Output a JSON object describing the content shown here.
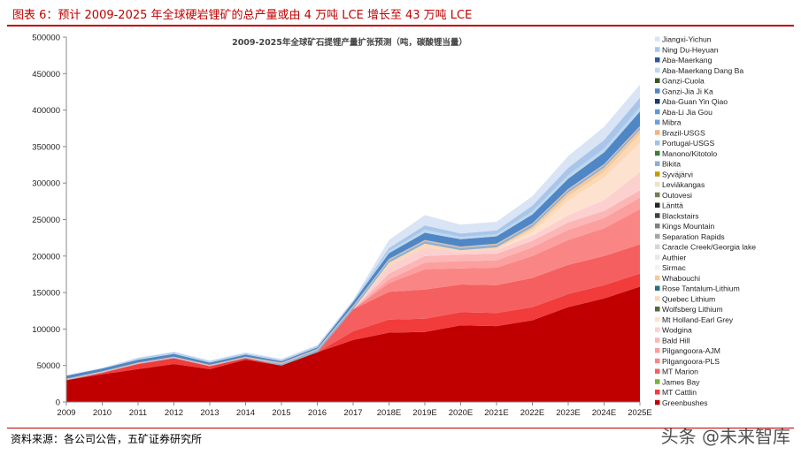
{
  "figure_title": "图表 6：预计 2009-2025 年全球硬岩锂矿的总产量或由 4 万吨 LCE 增长至 43 万吨 LCE",
  "source": "资料来源：各公司公告，五矿证券研究所",
  "watermark": "头条 @未来智库",
  "chart_data": {
    "type": "area",
    "stacked": true,
    "title": "2009-2025年全球矿石提锂产量扩张预测（吨，碳酸锂当量）",
    "xlabel": "",
    "ylabel": "",
    "ylim": [
      0,
      500000
    ],
    "yticks": [
      0,
      50000,
      100000,
      150000,
      200000,
      250000,
      300000,
      350000,
      400000,
      450000,
      500000
    ],
    "x": [
      "2009",
      "2010",
      "2011",
      "2012",
      "2013",
      "2014",
      "2015",
      "2016",
      "2017",
      "2018E",
      "2019E",
      "2020E",
      "2021E",
      "2022E",
      "2023E",
      "2024E",
      "2025E"
    ],
    "grid": false,
    "legend_position": "right",
    "series": [
      {
        "name": "Greenbushes",
        "color": "#c00000",
        "values": [
          30000,
          38000,
          45000,
          52000,
          45000,
          58000,
          50000,
          68000,
          85000,
          95000,
          96000,
          105000,
          104000,
          112000,
          130000,
          142000,
          158000
        ]
      },
      {
        "name": "MT Cattlin",
        "color": "#f23b3b",
        "values": [
          0,
          2000,
          7000,
          8000,
          4000,
          2000,
          0,
          0,
          12000,
          18000,
          18000,
          18000,
          18000,
          18000,
          18000,
          18000,
          18000
        ]
      },
      {
        "name": "James Bay",
        "color": "#77b13a",
        "values": [
          0,
          0,
          0,
          0,
          0,
          0,
          0,
          0,
          0,
          0,
          0,
          0,
          0,
          0,
          0,
          0,
          0
        ]
      },
      {
        "name": "MT Marion",
        "color": "#f55f5f",
        "values": [
          0,
          0,
          0,
          0,
          0,
          0,
          0,
          0,
          30000,
          38000,
          40000,
          38000,
          38000,
          40000,
          40000,
          40000,
          40000
        ]
      },
      {
        "name": "Pilgangoora-PLS",
        "color": "#fa8585",
        "values": [
          0,
          0,
          0,
          0,
          0,
          0,
          0,
          0,
          0,
          12000,
          28000,
          22000,
          24000,
          30000,
          34000,
          38000,
          48000
        ]
      },
      {
        "name": "Pilgangoora-AJM",
        "color": "#fb9f9f",
        "values": [
          0,
          0,
          0,
          0,
          0,
          0,
          0,
          0,
          0,
          5000,
          9000,
          10000,
          10000,
          12000,
          14000,
          14000,
          16000
        ]
      },
      {
        "name": "Bald Hill",
        "color": "#fcb6b6",
        "values": [
          0,
          0,
          0,
          0,
          0,
          0,
          0,
          0,
          0,
          8000,
          9000,
          9000,
          9000,
          9000,
          10000,
          10000,
          10000
        ]
      },
      {
        "name": "Wodgina",
        "color": "#fdd0d0",
        "values": [
          0,
          0,
          0,
          0,
          0,
          0,
          0,
          0,
          0,
          10000,
          12000,
          4000,
          6000,
          7000,
          10000,
          15000,
          25000
        ]
      },
      {
        "name": "Mt Holland-Earl Grey",
        "color": "#fde3cf",
        "values": [
          0,
          0,
          0,
          0,
          0,
          0,
          0,
          0,
          0,
          0,
          0,
          0,
          0,
          5000,
          20000,
          30000,
          40000
        ]
      },
      {
        "name": "Wolfsberg Lithium",
        "color": "#4e6b3e",
        "values": [
          0,
          0,
          0,
          0,
          0,
          0,
          0,
          0,
          0,
          0,
          0,
          0,
          0,
          0,
          0,
          0,
          0
        ]
      },
      {
        "name": "Quebec Lithium",
        "color": "#fbd9b8",
        "values": [
          0,
          0,
          0,
          0,
          0,
          0,
          0,
          0,
          0,
          5000,
          5000,
          2000,
          2000,
          4000,
          6000,
          8000,
          12000
        ]
      },
      {
        "name": "Rose Tantalum-Lithium",
        "color": "#2e6f7e",
        "values": [
          0,
          0,
          0,
          0,
          0,
          0,
          0,
          0,
          0,
          0,
          0,
          0,
          0,
          0,
          0,
          0,
          0
        ]
      },
      {
        "name": "Whabouchi",
        "color": "#f7c99a",
        "values": [
          0,
          0,
          0,
          0,
          0,
          0,
          0,
          0,
          0,
          0,
          0,
          0,
          1000,
          3000,
          5000,
          6000,
          6000
        ]
      },
      {
        "name": "Sirmac",
        "color": "#f2f2f2",
        "values": [
          0,
          0,
          0,
          0,
          0,
          0,
          0,
          0,
          0,
          0,
          0,
          0,
          0,
          0,
          0,
          0,
          0
        ]
      },
      {
        "name": "Authier",
        "color": "#e8e8e8",
        "values": [
          0,
          0,
          0,
          0,
          0,
          0,
          0,
          0,
          0,
          0,
          0,
          0,
          0,
          0,
          0,
          0,
          0
        ]
      },
      {
        "name": "Caracle Creek/Georgia lake",
        "color": "#d6d6d6",
        "values": [
          0,
          0,
          0,
          0,
          0,
          0,
          0,
          0,
          0,
          0,
          0,
          0,
          0,
          0,
          0,
          0,
          0
        ]
      },
      {
        "name": "Separation Rapids",
        "color": "#a6a6a6",
        "values": [
          0,
          0,
          0,
          0,
          0,
          0,
          0,
          0,
          0,
          0,
          0,
          0,
          0,
          0,
          0,
          0,
          0
        ]
      },
      {
        "name": "Kings Mountain",
        "color": "#7f7f7f",
        "values": [
          0,
          0,
          0,
          0,
          0,
          0,
          0,
          0,
          0,
          0,
          0,
          0,
          0,
          0,
          0,
          0,
          0
        ]
      },
      {
        "name": "Blackstairs",
        "color": "#404040",
        "values": [
          0,
          0,
          0,
          0,
          0,
          0,
          0,
          0,
          0,
          0,
          0,
          0,
          0,
          0,
          0,
          0,
          0
        ]
      },
      {
        "name": "Länttä",
        "color": "#262626",
        "values": [
          0,
          0,
          0,
          0,
          0,
          0,
          0,
          0,
          0,
          0,
          0,
          0,
          0,
          0,
          0,
          0,
          0
        ]
      },
      {
        "name": "Outovesi",
        "color": "#7a7a52",
        "values": [
          0,
          0,
          0,
          0,
          0,
          0,
          0,
          0,
          0,
          0,
          0,
          0,
          0,
          0,
          0,
          0,
          0
        ]
      },
      {
        "name": "Leviäkangas",
        "color": "#ede3c7",
        "values": [
          0,
          0,
          0,
          0,
          0,
          0,
          0,
          0,
          0,
          0,
          0,
          0,
          0,
          0,
          0,
          0,
          0
        ]
      },
      {
        "name": "Syväjärvi",
        "color": "#c49a00",
        "values": [
          0,
          0,
          0,
          0,
          0,
          0,
          0,
          0,
          0,
          0,
          0,
          0,
          0,
          0,
          0,
          0,
          0
        ]
      },
      {
        "name": "Bikita",
        "color": "#8faecf",
        "values": [
          0,
          0,
          0,
          0,
          0,
          0,
          2000,
          3000,
          3000,
          3000,
          3000,
          3000,
          3000,
          3000,
          3000,
          3000,
          3000
        ]
      },
      {
        "name": "Manono/Kitotolo",
        "color": "#3e7d3c",
        "values": [
          0,
          0,
          0,
          0,
          0,
          0,
          0,
          0,
          0,
          0,
          0,
          0,
          0,
          0,
          0,
          0,
          0
        ]
      },
      {
        "name": "Portugal-USGS",
        "color": "#9dc3e6",
        "values": [
          1000,
          1000,
          1000,
          1000,
          1000,
          1000,
          1000,
          1000,
          1000,
          1000,
          1000,
          1000,
          1000,
          1000,
          1000,
          1000,
          1000
        ]
      },
      {
        "name": "Brazil-USGS",
        "color": "#f4b183",
        "values": [
          1000,
          1000,
          1000,
          1000,
          1000,
          1000,
          1000,
          1000,
          1000,
          1000,
          1000,
          1000,
          1000,
          1000,
          1000,
          1000,
          1000
        ]
      },
      {
        "name": "Mibra",
        "color": "#6f9fd8",
        "values": [
          0,
          0,
          0,
          0,
          0,
          0,
          0,
          0,
          0,
          0,
          0,
          0,
          0,
          0,
          0,
          0,
          0
        ]
      },
      {
        "name": "Aba-Li Jia Gou",
        "color": "#5b9bd5",
        "values": [
          0,
          0,
          0,
          0,
          0,
          0,
          0,
          0,
          0,
          0,
          0,
          0,
          0,
          0,
          0,
          0,
          0
        ]
      },
      {
        "name": "Aba-Guan Yin Qiao",
        "color": "#1f3864",
        "values": [
          0,
          0,
          0,
          0,
          0,
          0,
          0,
          0,
          0,
          0,
          0,
          0,
          0,
          0,
          0,
          0,
          0
        ]
      },
      {
        "name": "Ganzi-Jia Ji Ka",
        "color": "#4f86c6",
        "values": [
          4000,
          4000,
          4000,
          4000,
          3000,
          3000,
          2000,
          2000,
          5000,
          8000,
          10000,
          10000,
          10000,
          12000,
          14000,
          16000,
          20000
        ]
      },
      {
        "name": "Ganzi-Cuola",
        "color": "#375623",
        "values": [
          0,
          0,
          0,
          0,
          0,
          0,
          0,
          0,
          0,
          0,
          0,
          0,
          0,
          0,
          0,
          0,
          0
        ]
      },
      {
        "name": "Aba-Maerkang Dang Ba",
        "color": "#bdd7ee",
        "values": [
          0,
          0,
          1000,
          1000,
          1000,
          1000,
          1000,
          1000,
          1000,
          3000,
          4000,
          3000,
          3000,
          4000,
          5000,
          5000,
          6000
        ]
      },
      {
        "name": "Aba-Maerkang",
        "color": "#2f5597",
        "values": [
          0,
          0,
          0,
          0,
          0,
          0,
          0,
          0,
          0,
          0,
          0,
          0,
          0,
          0,
          0,
          0,
          0
        ]
      },
      {
        "name": "Ning Du-Heyuan",
        "color": "#a9c6ea",
        "values": [
          0,
          0,
          1000,
          1000,
          1000,
          1000,
          1000,
          1000,
          1000,
          4000,
          6000,
          5000,
          5000,
          8000,
          10000,
          12000,
          13000
        ]
      },
      {
        "name": "Jiangxi-Yichun",
        "color": "#d9e4f5",
        "values": [
          1000,
          1000,
          1000,
          1000,
          1000,
          1000,
          1000,
          1000,
          1000,
          11000,
          14000,
          12000,
          12000,
          13000,
          16000,
          18000,
          18000
        ]
      }
    ]
  }
}
